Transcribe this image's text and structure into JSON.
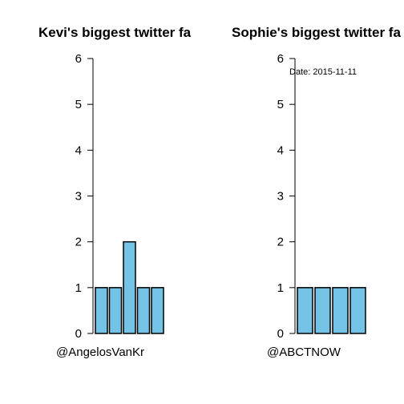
{
  "chart_data": [
    {
      "type": "bar",
      "title": "Kevi's biggest twitter fa",
      "categories": [
        "@AngelosVanKr",
        "",
        "",
        "",
        ""
      ],
      "values": [
        1,
        1,
        2,
        1,
        1
      ],
      "ylim": [
        0,
        6
      ],
      "yticks": [
        0,
        1,
        2,
        3,
        4,
        5,
        6
      ],
      "bar_color": "#74c3e6",
      "grid": false
    },
    {
      "type": "bar",
      "title": "Sophie's biggest twitter fa",
      "annotation": "Date: 2015-11-11",
      "categories": [
        "@ABCTNOW",
        "",
        "",
        ""
      ],
      "values": [
        1,
        1,
        1,
        1
      ],
      "ylim": [
        0,
        6
      ],
      "yticks": [
        0,
        1,
        2,
        3,
        4,
        5,
        6
      ],
      "bar_color": "#74c3e6",
      "grid": false
    }
  ]
}
